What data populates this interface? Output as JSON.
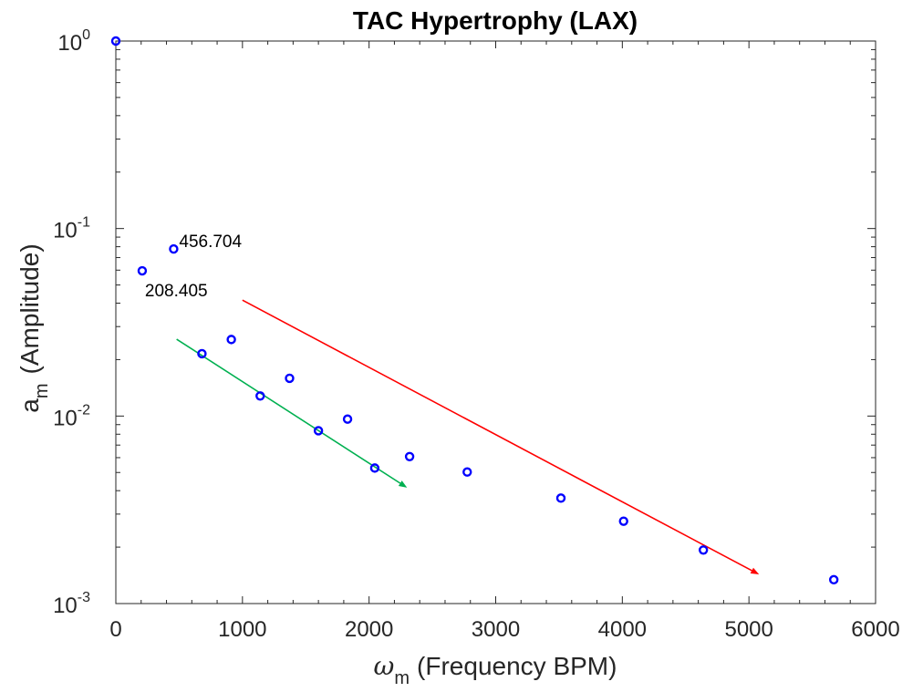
{
  "chart_data": {
    "type": "scatter",
    "title": "TAC Hypertrophy (LAX)",
    "xlabel": {
      "symbol": "ω",
      "subscript": "m",
      "text": "(Frequency BPM)"
    },
    "ylabel": {
      "symbol": "a",
      "subscript": "m",
      "text": "(Amplitude)"
    },
    "xlim": [
      0,
      6000
    ],
    "ylim": [
      0.001,
      1
    ],
    "yscale": "log",
    "grid": false,
    "x_ticks": [
      {
        "value": 0,
        "label": "0"
      },
      {
        "value": 1000,
        "label": "1000"
      },
      {
        "value": 2000,
        "label": "2000"
      },
      {
        "value": 3000,
        "label": "3000"
      },
      {
        "value": 4000,
        "label": "4000"
      },
      {
        "value": 5000,
        "label": "5000"
      },
      {
        "value": 6000,
        "label": "6000"
      }
    ],
    "y_ticks": [
      {
        "value": 1,
        "base": "10",
        "exp": "0"
      },
      {
        "value": 0.1,
        "base": "10",
        "exp": "-1"
      },
      {
        "value": 0.01,
        "base": "10",
        "exp": "-2"
      },
      {
        "value": 0.001,
        "base": "10",
        "exp": "-3"
      }
    ],
    "series": [
      {
        "name": "amplitudes",
        "marker": "circle",
        "color": "#0000ff",
        "points": [
          {
            "x": 0,
            "y": 1.0
          },
          {
            "x": 208.405,
            "y": 0.0595
          },
          {
            "x": 456.704,
            "y": 0.0778
          },
          {
            "x": 680,
            "y": 0.0215
          },
          {
            "x": 912,
            "y": 0.0256
          },
          {
            "x": 1140,
            "y": 0.0128
          },
          {
            "x": 1372,
            "y": 0.0159
          },
          {
            "x": 1600,
            "y": 0.00835
          },
          {
            "x": 1830,
            "y": 0.00963
          },
          {
            "x": 2045,
            "y": 0.00528
          },
          {
            "x": 2320,
            "y": 0.00608
          },
          {
            "x": 2775,
            "y": 0.00503
          },
          {
            "x": 3515,
            "y": 0.00365
          },
          {
            "x": 4010,
            "y": 0.00275
          },
          {
            "x": 4640,
            "y": 0.00193
          },
          {
            "x": 5670,
            "y": 0.00134
          }
        ]
      }
    ],
    "annotations": [
      {
        "text": "456.704",
        "x": 456.704,
        "y": 0.0778,
        "anchor": "right"
      },
      {
        "text": "208.405",
        "x": 208.405,
        "y": 0.0595,
        "anchor": "below"
      }
    ],
    "arrows": [
      {
        "name": "green",
        "color": "#00b050",
        "from": {
          "x": 480,
          "y": 0.0257
        },
        "to": {
          "x": 2300,
          "y": 0.00415
        }
      },
      {
        "name": "red",
        "color": "#ff0000",
        "from": {
          "x": 1000,
          "y": 0.0415
        },
        "to": {
          "x": 5080,
          "y": 0.00143
        }
      }
    ]
  }
}
